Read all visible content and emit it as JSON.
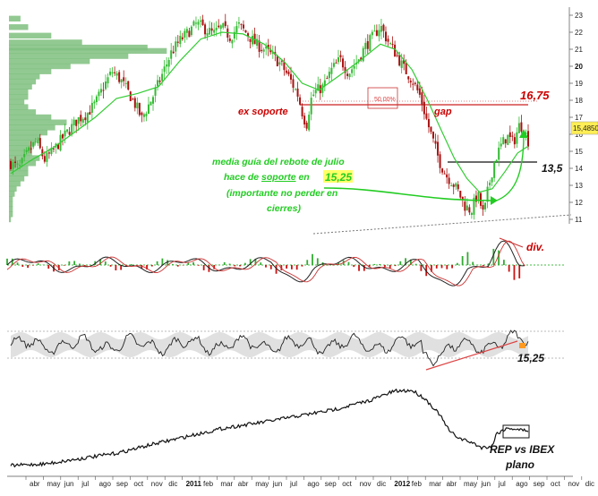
{
  "chart_data": [
    {
      "type": "candlestick",
      "title": "",
      "y_ticks": [
        "23",
        "22",
        "21",
        "20",
        "19",
        "18",
        "17",
        "16",
        "15",
        "14",
        "13",
        "12",
        "11"
      ],
      "y_range": [
        10.5,
        23.3
      ],
      "last_price_label": "15,4850",
      "close_path": [
        [
          0,
          14.3
        ],
        [
          4,
          14.0
        ],
        [
          8,
          14.9
        ],
        [
          12,
          15.6
        ],
        [
          16,
          14.5
        ],
        [
          20,
          15.0
        ],
        [
          24,
          15.7
        ],
        [
          28,
          16.3
        ],
        [
          32,
          16.9
        ],
        [
          36,
          17.2
        ],
        [
          40,
          17.8
        ],
        [
          44,
          18.8
        ],
        [
          48,
          19.7
        ],
        [
          52,
          19.2
        ],
        [
          56,
          18.4
        ],
        [
          60,
          17.5
        ],
        [
          62,
          16.9
        ],
        [
          64,
          17.4
        ],
        [
          68,
          18.4
        ],
        [
          72,
          19.6
        ],
        [
          76,
          20.8
        ],
        [
          80,
          21.5
        ],
        [
          84,
          22.0
        ],
        [
          88,
          22.5
        ],
        [
          92,
          22.2
        ],
        [
          96,
          21.9
        ],
        [
          100,
          22.3
        ],
        [
          104,
          21.7
        ],
        [
          108,
          22.4
        ],
        [
          112,
          21.9
        ],
        [
          116,
          21.3
        ],
        [
          120,
          21.0
        ],
        [
          124,
          20.6
        ],
        [
          128,
          20.1
        ],
        [
          132,
          19.3
        ],
        [
          136,
          18.3
        ],
        [
          138,
          17.3
        ],
        [
          140,
          16.5
        ],
        [
          142,
          18.0
        ],
        [
          144,
          18.5
        ],
        [
          148,
          18.8
        ],
        [
          152,
          19.8
        ],
        [
          156,
          20.4
        ],
        [
          160,
          19.6
        ],
        [
          164,
          20.3
        ],
        [
          168,
          21.2
        ],
        [
          172,
          21.8
        ],
        [
          175,
          22.4
        ],
        [
          178,
          21.6
        ],
        [
          182,
          20.8
        ],
        [
          186,
          19.9
        ],
        [
          190,
          19.2
        ],
        [
          194,
          18.2
        ],
        [
          197,
          16.8
        ],
        [
          200,
          15.6
        ],
        [
          203,
          14.4
        ],
        [
          206,
          13.6
        ],
        [
          209,
          13.2
        ],
        [
          212,
          12.6
        ],
        [
          215,
          11.8
        ],
        [
          218,
          11.5
        ],
        [
          221,
          12.5
        ],
        [
          224,
          11.2
        ],
        [
          226,
          12.8
        ],
        [
          229,
          14.4
        ],
        [
          232,
          15.3
        ],
        [
          235,
          15.9
        ],
        [
          238,
          15.5
        ],
        [
          241,
          16.6
        ],
        [
          243,
          16.3
        ],
        [
          245,
          15.6
        ]
      ],
      "ma_path": [
        [
          0,
          13.7
        ],
        [
          10,
          14.5
        ],
        [
          20,
          15.2
        ],
        [
          30,
          16.1
        ],
        [
          40,
          17.0
        ],
        [
          50,
          18.1
        ],
        [
          60,
          18.4
        ],
        [
          70,
          18.8
        ],
        [
          80,
          20.3
        ],
        [
          90,
          21.6
        ],
        [
          100,
          22.0
        ],
        [
          110,
          21.9
        ],
        [
          120,
          21.3
        ],
        [
          130,
          20.2
        ],
        [
          138,
          19.0
        ],
        [
          146,
          18.6
        ],
        [
          155,
          19.4
        ],
        [
          165,
          20.3
        ],
        [
          175,
          21.3
        ],
        [
          182,
          21.0
        ],
        [
          190,
          19.8
        ],
        [
          197,
          18.1
        ],
        [
          204,
          16.2
        ],
        [
          210,
          14.6
        ],
        [
          216,
          13.4
        ],
        [
          222,
          12.6
        ],
        [
          228,
          12.8
        ],
        [
          234,
          13.8
        ],
        [
          240,
          14.9
        ],
        [
          245,
          15.3
        ]
      ],
      "volume_profile": [
        [
          22.8,
          0.06
        ],
        [
          22.3,
          0.1
        ],
        [
          21.8,
          0.22
        ],
        [
          21.4,
          0.38
        ],
        [
          21.1,
          0.72
        ],
        [
          20.9,
          0.82
        ],
        [
          20.6,
          0.62
        ],
        [
          20.3,
          0.42
        ],
        [
          20.0,
          0.32
        ],
        [
          19.7,
          0.22
        ],
        [
          19.4,
          0.16
        ],
        [
          19.1,
          0.14
        ],
        [
          18.8,
          0.12
        ],
        [
          18.5,
          0.1
        ],
        [
          18.2,
          0.1
        ],
        [
          17.9,
          0.08
        ],
        [
          17.6,
          0.1
        ],
        [
          17.3,
          0.14
        ],
        [
          17.0,
          0.22
        ],
        [
          16.7,
          0.3
        ],
        [
          16.4,
          0.24
        ],
        [
          16.1,
          0.2
        ],
        [
          15.8,
          0.16
        ],
        [
          15.5,
          0.14
        ],
        [
          15.2,
          0.12
        ],
        [
          14.9,
          0.12
        ],
        [
          14.6,
          0.16
        ],
        [
          14.3,
          0.14
        ],
        [
          14.0,
          0.1
        ],
        [
          13.7,
          0.1
        ],
        [
          13.4,
          0.08
        ],
        [
          13.1,
          0.06
        ],
        [
          12.8,
          0.04
        ],
        [
          12.5,
          0.03
        ],
        [
          12.2,
          0.02
        ],
        [
          11.9,
          0.02
        ],
        [
          11.6,
          0.02
        ],
        [
          11.3,
          0.02
        ],
        [
          11.0,
          0.01
        ]
      ],
      "levels": [
        {
          "name": "ex soporte",
          "value": 16.75,
          "label": "16,75"
        },
        {
          "name": "13,5",
          "value": 13.5,
          "label": "13,5"
        }
      ],
      "fib_label": "50,00%",
      "annotations": {
        "ex_soporte": "ex soporte",
        "gap": "gap",
        "level_high": "16,75",
        "level_low": "13,5",
        "note_line1": "media guía del rebote de julio",
        "note_line2": "hace de ",
        "note_line2_underlined": "soporte",
        "note_line2_after": " en ",
        "note_value": "15,25",
        "note_line3": "(importante no perder en",
        "note_line4": "cierres)"
      }
    },
    {
      "type": "line",
      "title": "",
      "name": "macd",
      "annotation": "div."
    },
    {
      "type": "line",
      "title": "",
      "name": "oscillator",
      "annotation": "15,25"
    },
    {
      "type": "line",
      "title": "",
      "name": "relative-strength",
      "annotation_line1": "REP vs IBEX",
      "annotation_line2": "plano"
    }
  ],
  "x_axis": {
    "labels": [
      "abr",
      "may",
      "jun",
      "jul",
      "ago",
      "sep",
      "oct",
      "nov",
      "dic",
      "2011",
      "feb",
      "mar",
      "abr",
      "may",
      "jun",
      "jul",
      "ago",
      "sep",
      "oct",
      "nov",
      "dic",
      "2012",
      "feb",
      "mar",
      "abr",
      "may",
      "jun",
      "jul",
      "ago",
      "sep",
      "oct",
      "nov",
      "dic"
    ],
    "bold": [
      "2011",
      "2012"
    ]
  }
}
